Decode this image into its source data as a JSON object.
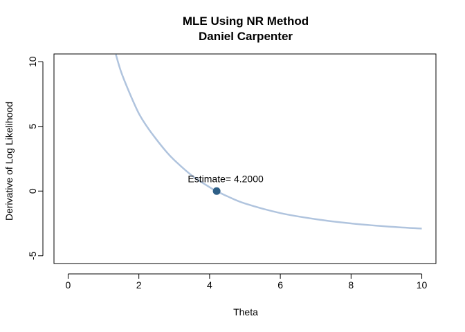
{
  "chart_data": {
    "type": "line",
    "title": "MLE Using NR Method",
    "subtitle": "Daniel Carpenter",
    "xlabel": "Theta",
    "ylabel": "Derivative of Log Likelihood",
    "xlim": [
      -0.4,
      10.4
    ],
    "ylim": [
      -5.6,
      10.6
    ],
    "x_ticks": [
      0,
      2,
      4,
      6,
      8,
      10
    ],
    "y_ticks": [
      -5,
      0,
      5,
      10
    ],
    "x_tick_labels": [
      "0",
      "2",
      "4",
      "6",
      "8",
      "10"
    ],
    "y_tick_labels": [
      "-5",
      "0",
      "5",
      "10"
    ],
    "grid": false,
    "series": [
      {
        "color": "#b0c4de",
        "x": [
          1.35,
          1.5,
          1.75,
          2.0,
          2.25,
          2.5,
          2.75,
          3.0,
          3.5,
          4.0,
          4.2,
          4.5,
          5.0,
          6.0,
          7.0,
          8.0,
          9.0,
          10.0
        ],
        "y": [
          10.56,
          9.2,
          7.5,
          6.0,
          4.9,
          3.98,
          3.13,
          2.4,
          1.2,
          0.3,
          0.0,
          -0.4,
          -0.96,
          -1.7,
          -2.17,
          -2.5,
          -2.73,
          -2.9
        ]
      }
    ],
    "point": {
      "x": 4.2,
      "y": 0.0,
      "color": "#2e5f86"
    },
    "annotation": {
      "text": "Estimate= 4.2000",
      "x": 4.2,
      "y": 0.0
    }
  }
}
